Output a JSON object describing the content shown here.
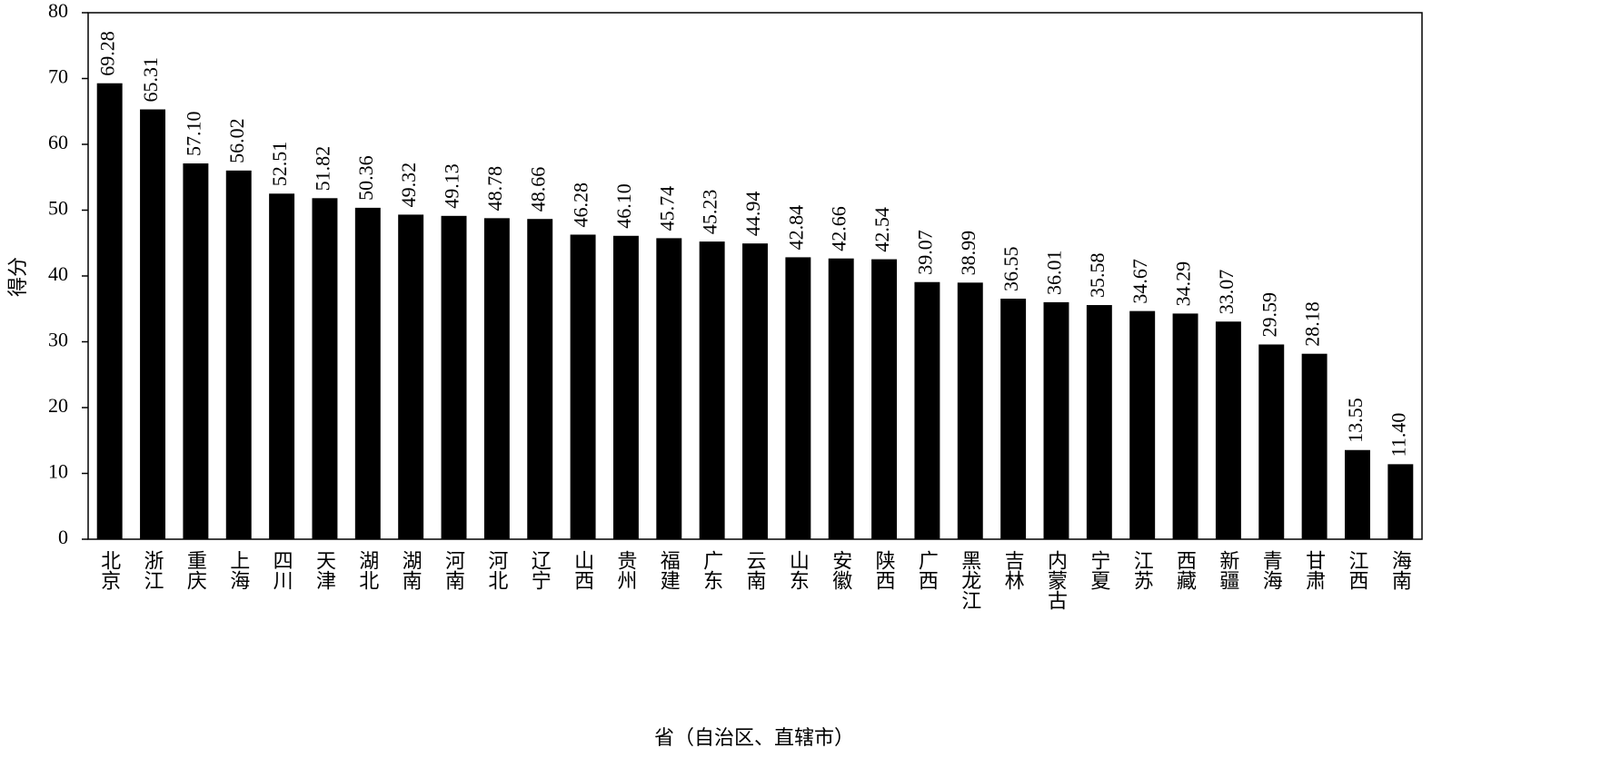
{
  "chart_data": {
    "type": "bar",
    "x_label": "省（自治区、直辖市）",
    "y_label": "得分",
    "categories": [
      "北京",
      "浙江",
      "重庆",
      "上海",
      "四川",
      "天津",
      "湖北",
      "湖南",
      "河南",
      "河北",
      "辽宁",
      "山西",
      "贵州",
      "福建",
      "广东",
      "云南",
      "山东",
      "安徽",
      "陕西",
      "广西",
      "黑龙江",
      "吉林",
      "内蒙古",
      "宁夏",
      "江苏",
      "西藏",
      "新疆",
      "青海",
      "甘肃",
      "江西",
      "海南"
    ],
    "values": [
      69.28,
      65.31,
      57.1,
      56.02,
      52.51,
      51.82,
      50.36,
      49.32,
      49.13,
      48.78,
      48.66,
      46.28,
      46.1,
      45.74,
      45.23,
      44.94,
      42.84,
      42.66,
      42.54,
      39.07,
      38.99,
      36.55,
      36.01,
      35.58,
      34.67,
      34.29,
      33.07,
      29.59,
      28.18,
      13.55,
      11.4
    ],
    "value_labels": [
      "69.28",
      "65.31",
      "57.10",
      "56.02",
      "52.51",
      "51.82",
      "50.36",
      "49.32",
      "49.13",
      "48.78",
      "48.66",
      "46.28",
      "46.10",
      "45.74",
      "45.23",
      "44.94",
      "42.84",
      "42.66",
      "42.54",
      "39.07",
      "38.99",
      "36.55",
      "36.01",
      "35.58",
      "34.67",
      "34.29",
      "33.07",
      "29.59",
      "28.18",
      "13.55",
      "11.40"
    ],
    "color": "#000000",
    "ylim": [
      0,
      80
    ],
    "yticks": [
      0,
      10,
      20,
      30,
      40,
      50,
      60,
      70,
      80
    ]
  }
}
